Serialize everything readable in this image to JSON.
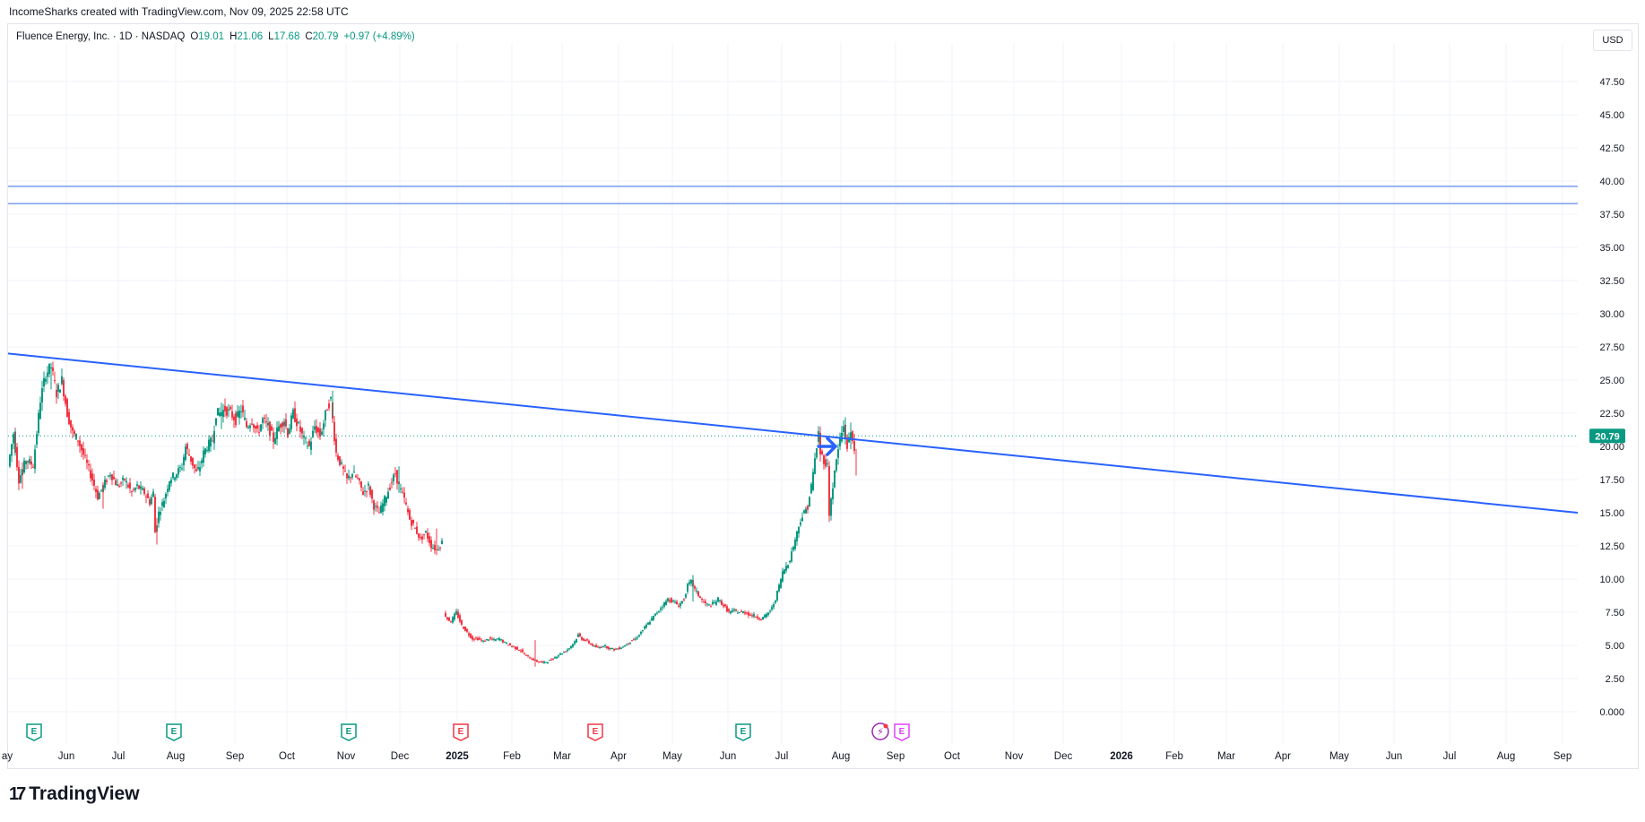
{
  "credit": "IncomeSharks created with TradingView.com, Nov 09, 2025 22:58 UTC",
  "legend": {
    "symbol": "Fluence Energy, Inc. · 1D · NASDAQ",
    "o_label": "O",
    "o": "19.01",
    "h_label": "H",
    "h": "21.06",
    "l_label": "L",
    "l": "17.68",
    "c_label": "C",
    "c": "20.79",
    "change": "+0.97 (+4.89%)"
  },
  "currency": "USD",
  "logo": {
    "mark": "17",
    "text": "TradingView"
  },
  "chart_data": {
    "type": "candlestick",
    "ylim": [
      0,
      50
    ],
    "y_ticks": [
      "0.000",
      "2.50",
      "5.00",
      "7.50",
      "10.00",
      "12.50",
      "15.00",
      "17.50",
      "20.00",
      "22.50",
      "25.00",
      "27.50",
      "30.00",
      "32.50",
      "35.00",
      "37.50",
      "40.00",
      "42.50",
      "45.00",
      "47.50"
    ],
    "x_ticks": [
      "ay",
      "Jun",
      "Jul",
      "Aug",
      "Sep",
      "Oct",
      "Nov",
      "Dec",
      "2025",
      "Feb",
      "Mar",
      "Apr",
      "May",
      "Jun",
      "Jul",
      "Aug",
      "Sep",
      "Oct",
      "Nov",
      "Dec",
      "2026",
      "Feb",
      "Mar",
      "Apr",
      "May",
      "Jun",
      "Jul",
      "Aug",
      "Sep"
    ],
    "last_price": 20.79,
    "last_price_label": "20.79",
    "colors": {
      "up": "#089981",
      "down": "#f23645",
      "line": "#2962ff",
      "hline": "#7b9cf5",
      "grid": "#f0f3fa"
    },
    "price_path": [
      [
        0,
        18.5
      ],
      [
        6,
        21
      ],
      [
        12,
        17.5
      ],
      [
        20,
        19
      ],
      [
        28,
        18.6
      ],
      [
        36,
        23.5
      ],
      [
        42,
        25.5
      ],
      [
        48,
        26
      ],
      [
        54,
        24
      ],
      [
        60,
        25
      ],
      [
        66,
        22.5
      ],
      [
        72,
        21
      ],
      [
        78,
        20.5
      ],
      [
        86,
        19
      ],
      [
        94,
        17.5
      ],
      [
        100,
        16.2
      ],
      [
        106,
        17
      ],
      [
        114,
        18
      ],
      [
        122,
        17
      ],
      [
        130,
        17.5
      ],
      [
        138,
        16.5
      ],
      [
        144,
        17
      ],
      [
        152,
        16.5
      ],
      [
        158,
        15.8
      ],
      [
        162,
        16.5
      ],
      [
        164,
        13.5
      ],
      [
        168,
        15
      ],
      [
        174,
        16
      ],
      [
        180,
        17.5
      ],
      [
        188,
        18
      ],
      [
        194,
        18.5
      ],
      [
        198,
        20
      ],
      [
        204,
        19
      ],
      [
        210,
        18
      ],
      [
        214,
        18.5
      ],
      [
        218,
        19.5
      ],
      [
        222,
        20
      ],
      [
        228,
        20.5
      ],
      [
        232,
        22.5
      ],
      [
        236,
        22.5
      ],
      [
        242,
        22.8
      ],
      [
        248,
        22.5
      ],
      [
        254,
        22
      ],
      [
        260,
        22.8
      ],
      [
        266,
        21.5
      ],
      [
        272,
        22
      ],
      [
        278,
        21
      ],
      [
        284,
        22
      ],
      [
        290,
        21.5
      ],
      [
        296,
        20.5
      ],
      [
        302,
        21.5
      ],
      [
        308,
        22
      ],
      [
        312,
        21
      ],
      [
        318,
        22.5
      ],
      [
        324,
        21.5
      ],
      [
        330,
        20.5
      ],
      [
        336,
        20
      ],
      [
        342,
        21.5
      ],
      [
        348,
        20.8
      ],
      [
        352,
        21.8
      ],
      [
        356,
        23
      ],
      [
        360,
        23.5
      ],
      [
        362,
        22
      ],
      [
        366,
        19.5
      ],
      [
        372,
        18.5
      ],
      [
        378,
        17.5
      ],
      [
        384,
        18
      ],
      [
        390,
        17.5
      ],
      [
        396,
        16.5
      ],
      [
        402,
        17
      ],
      [
        408,
        15.5
      ],
      [
        414,
        15
      ],
      [
        420,
        16
      ],
      [
        426,
        17
      ],
      [
        432,
        18
      ],
      [
        436,
        17
      ],
      [
        442,
        16
      ],
      [
        448,
        14.5
      ],
      [
        454,
        13.8
      ],
      [
        460,
        13
      ],
      [
        466,
        13.5
      ],
      [
        472,
        12.5
      ],
      [
        478,
        12.2
      ],
      [
        484,
        12.8
      ],
      null,
      [
        486,
        7.5
      ],
      [
        490,
        7
      ],
      [
        494,
        6.8
      ],
      [
        500,
        7.5
      ],
      [
        506,
        6.5
      ],
      [
        512,
        6
      ],
      [
        518,
        5.5
      ],
      [
        524,
        5.5
      ],
      [
        530,
        5.3
      ],
      [
        536,
        5.5
      ],
      [
        542,
        5.4
      ],
      [
        548,
        5.5
      ],
      [
        554,
        5.2
      ],
      [
        560,
        5
      ],
      [
        566,
        4.8
      ],
      [
        572,
        4.6
      ],
      [
        578,
        4.2
      ],
      [
        584,
        4
      ],
      [
        590,
        3.8
      ],
      [
        596,
        3.7
      ],
      [
        602,
        3.8
      ],
      [
        608,
        4
      ],
      [
        614,
        4.3
      ],
      [
        620,
        4.5
      ],
      [
        626,
        4.8
      ],
      [
        632,
        5.3
      ],
      [
        636,
        5.8
      ],
      [
        640,
        5.5
      ],
      [
        646,
        5.3
      ],
      [
        652,
        5
      ],
      [
        658,
        4.8
      ],
      [
        664,
        5
      ],
      [
        670,
        4.8
      ],
      [
        676,
        4.7
      ],
      [
        682,
        4.8
      ],
      [
        688,
        5
      ],
      [
        694,
        5.3
      ],
      [
        700,
        5.5
      ],
      [
        706,
        6
      ],
      [
        712,
        6.5
      ],
      [
        718,
        7
      ],
      [
        724,
        7.5
      ],
      [
        730,
        8
      ],
      [
        736,
        8.5
      ],
      [
        742,
        8.3
      ],
      [
        748,
        8
      ],
      [
        754,
        8.5
      ],
      [
        758,
        9.5
      ],
      [
        762,
        9.8
      ],
      [
        766,
        9.2
      ],
      [
        770,
        8.8
      ],
      [
        776,
        8.2
      ],
      [
        782,
        8
      ],
      [
        788,
        8.2
      ],
      [
        792,
        8.5
      ],
      [
        798,
        8
      ],
      [
        804,
        7.5
      ],
      [
        810,
        7.6
      ],
      [
        816,
        7.5
      ],
      [
        822,
        7.5
      ],
      [
        828,
        7.3
      ],
      [
        834,
        7.2
      ],
      [
        840,
        7
      ],
      [
        846,
        7.3
      ],
      [
        852,
        7.8
      ],
      [
        856,
        8.5
      ],
      [
        860,
        9.5
      ],
      [
        864,
        10.5
      ],
      [
        868,
        11
      ],
      [
        872,
        11.5
      ],
      [
        876,
        12.5
      ],
      [
        880,
        13.5
      ],
      [
        884,
        14.5
      ],
      [
        888,
        15
      ],
      [
        892,
        15.5
      ],
      [
        896,
        17
      ],
      [
        900,
        19
      ],
      [
        904,
        21
      ],
      [
        906,
        19.5
      ],
      [
        910,
        19
      ],
      [
        914,
        18.5
      ],
      [
        916,
        15
      ],
      [
        920,
        17
      ],
      [
        924,
        19
      ],
      [
        928,
        20.5
      ],
      [
        932,
        21.5
      ],
      [
        936,
        20
      ],
      [
        940,
        21
      ],
      [
        944,
        20
      ]
    ],
    "up_tips": [
      [
        6,
        21.3
      ],
      [
        46,
        26.3
      ],
      [
        236,
        23.3
      ],
      [
        360,
        24.2
      ],
      [
        434,
        18.5
      ],
      [
        762,
        10.3
      ],
      [
        932,
        22.2
      ],
      [
        938,
        21.8
      ]
    ],
    "down_tips": [
      [
        14,
        16.8
      ],
      [
        104,
        15.3
      ],
      [
        164,
        12.6
      ],
      [
        476,
        11.8
      ],
      [
        586,
        3.4
      ],
      [
        914,
        14.3
      ],
      [
        944,
        17.8
      ]
    ],
    "trendline": {
      "x0": 0,
      "y0": 27.0,
      "x1": 1480,
      "y1": 15.0
    },
    "hlines": [
      39.6,
      38.3
    ],
    "arrow_marker": {
      "x": 915,
      "y": 20.0
    },
    "event_markers": [
      {
        "x": 14,
        "label": "E",
        "kind": "earnings-past"
      },
      {
        "x": 170,
        "label": "E",
        "kind": "earnings-past"
      },
      {
        "x": 365,
        "label": "E",
        "kind": "earnings-past"
      },
      {
        "x": 490,
        "label": "E",
        "kind": "earnings-miss"
      },
      {
        "x": 640,
        "label": "E",
        "kind": "earnings-miss"
      },
      {
        "x": 805,
        "label": "E",
        "kind": "earnings-past"
      },
      {
        "x": 958,
        "label": "⚡",
        "kind": "dividend"
      },
      {
        "x": 982,
        "label": "E",
        "kind": "earnings-upcoming"
      }
    ]
  }
}
